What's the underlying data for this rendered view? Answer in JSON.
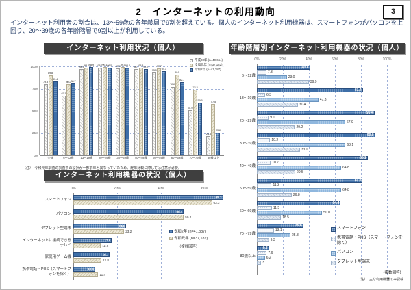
{
  "header": {
    "title": "2　インターネットの利用動向",
    "page_number": "3",
    "subtitle": "インターネット利用者の割合は、13〜59歳の各年齢層で9割を超えている。個人のインターネット利用機器は、スマートフォンがパソコンを上回り、20〜39歳の各年齢階層で9割以上が利用している。"
  },
  "colors": {
    "primary_blue": "#3E6FA8",
    "secondary_blue": "#8FB7DE",
    "pale_blue": "#E2EAF3",
    "beige_hatch": "#EDE9D8",
    "titlebar_bg": "#3F3F3F",
    "subtitle_text": "#1F3864",
    "gridline": "#9FB0D8"
  },
  "chart_data": [
    {
      "type": "bar",
      "orientation": "vertical",
      "title": "インターネット利用状況（個人）",
      "categories": [
        "全体",
        "6〜12歳",
        "13〜19歳",
        "20〜29歳",
        "30〜39歳",
        "40〜49歳",
        "50〜59歳",
        "60〜69歳",
        "70〜79歳",
        "80歳以上"
      ],
      "series": [
        {
          "name": "平成30年 (n=40,664)",
          "color": "#FBFBF9",
          "values": [
            79.8,
            67.1,
            96.6,
            98.7,
            97.9,
            96.7,
            93.0,
            76.6,
            51.0,
            21.5
          ]
        },
        {
          "name": "令和元年 (n=37,182)",
          "color": "#EDE9D8",
          "values": [
            89.8,
            80.2,
            98.4,
            99.1,
            99.0,
            98.3,
            97.7,
            90.5,
            74.2,
            57.5
          ]
        },
        {
          "name": "令和2年 (n=41,387)",
          "color": "#3E6FA8",
          "values": [
            83.4,
            80.7,
            98.9,
            98.5,
            98.2,
            97.2,
            94.7,
            82.7,
            59.6,
            25.6
          ]
        }
      ],
      "ylim": [
        0,
        100
      ],
      "yticks": [
        "0%",
        "25%",
        "50%",
        "75%",
        "100%"
      ],
      "grid": "dotted horizontal",
      "legend_position": "top-right",
      "footnote": "（注）　令和元年調査の調査票の設計が一部前年と異なっていたため、経年比較に際しては注意が必要。"
    },
    {
      "type": "bar",
      "orientation": "horizontal",
      "title": "インターネット利用機器の状況（個人）",
      "categories": [
        "スマートフォン",
        "パソコン",
        "タブレット型端末",
        "インターネットに接続できるテレビ",
        "家庭用ゲーム機",
        "携帯電話・PHS（スマートフォンを除く）"
      ],
      "series": [
        {
          "name": "令和2年 (n=41,387)",
          "color": "#3E6FA8",
          "values": [
            68.3,
            50.4,
            24.1,
            17.6,
            16.7,
            10.1
          ]
        },
        {
          "name": "令和元年 (n=37,182)",
          "color": "#EDE9D8",
          "values": [
            63.3,
            50.4,
            23.2,
            12.6,
            12.8,
            11.4
          ]
        }
      ],
      "xlim": [
        0,
        70
      ],
      "xticks": [
        "0%",
        "20%",
        "40%",
        "60%"
      ],
      "grid": "dotted vertical",
      "legend_position": "middle-right",
      "legend_note": "（複数回答）"
    },
    {
      "type": "bar",
      "orientation": "horizontal",
      "title": "年齢階層別インターネット利用機器の状況（個人）",
      "categories": [
        "6〜12歳",
        "13〜19歳",
        "20〜29歳",
        "30〜39歳",
        "40〜49歳",
        "50〜59歳",
        "60〜69歳",
        "70〜79歳",
        "80歳以上"
      ],
      "series": [
        {
          "name": "スマートフォン",
          "color": "#3E6FA8",
          "values": [
            40.8,
            81.4,
            90.4,
            90.8,
            85.2,
            81.3,
            64.4,
            35.6,
            9.3
          ]
        },
        {
          "name": "携帯電話・PHS（スマートフォンを除く）",
          "color": "#F5F8FB",
          "values": [
            7.3,
            6.3,
            9.1,
            10.2,
            10.7,
            11.3,
            11.5,
            13.1,
            7.6
          ]
        },
        {
          "name": "パソコン",
          "color": "#8FB7DE",
          "values": [
            23.0,
            47.3,
            67.9,
            68.1,
            64.8,
            64.8,
            50.0,
            25.8,
            6.2
          ]
        },
        {
          "name": "タブレット型端末",
          "color": "#E2EAF3",
          "values": [
            39.9,
            31.4,
            29.2,
            33.0,
            29.5,
            26.8,
            18.5,
            9.3,
            3.1
          ]
        }
      ],
      "xlim": [
        0,
        100
      ],
      "xticks": [
        "0%",
        "20%",
        "40%",
        "60%",
        "80%",
        "100%"
      ],
      "grid": "dotted vertical",
      "legend_position": "bottom-right",
      "legend_note": "（複数回答）",
      "footnote": "（注）　主な利用機器のみ記載"
    }
  ]
}
